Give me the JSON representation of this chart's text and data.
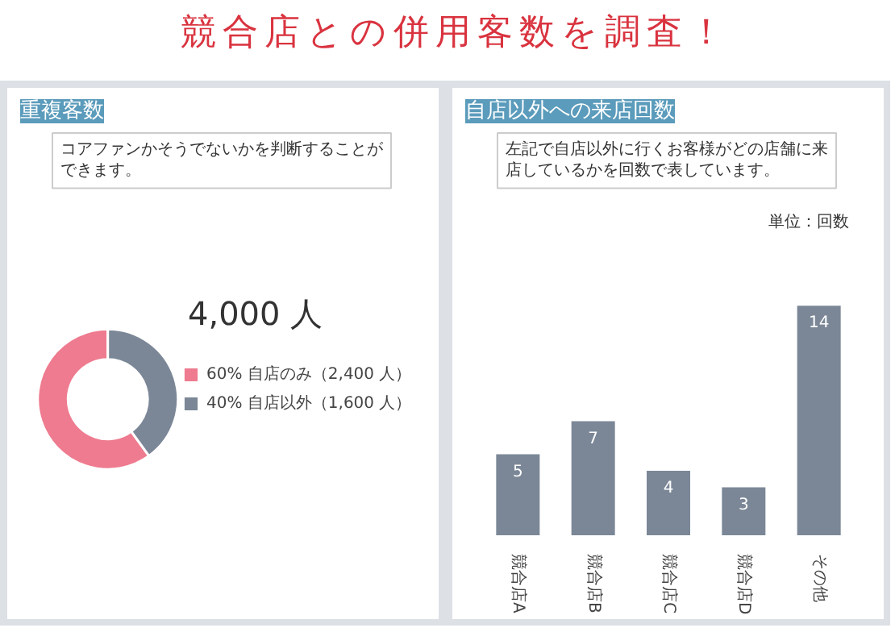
{
  "chart_data": [
    {
      "type": "donut",
      "title": "重複客数",
      "annotations": [
        "競合店との併用客数を調査！",
        "コアファンかそうでないかを判断することができます。",
        "4,000 人"
      ],
      "categories": [
        "自店のみ（2,400 人）",
        "自店以外（1,600 人）"
      ],
      "values": [
        60,
        40
      ],
      "colors": [
        "#ee7b8f",
        "#7b8797"
      ],
      "value_labels": [
        "60%",
        "40%"
      ],
      "legend": "right"
    },
    {
      "type": "bar",
      "title": "自店以外への来店回数",
      "annotations": [
        "左記で自店以外に行くお客様がどの店舗に来店しているかを回数で表しています。",
        "単位：回数"
      ],
      "categories": [
        "競合店A",
        "競合店B",
        "競合店C",
        "競合店D",
        "その他"
      ],
      "values": [
        5,
        7,
        4,
        3,
        14
      ],
      "color": "#7b8797",
      "data_labels": true
    }
  ]
}
